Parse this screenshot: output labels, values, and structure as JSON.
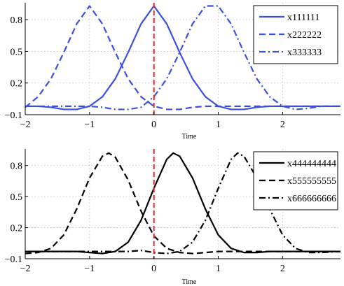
{
  "chart_data": [
    {
      "type": "line",
      "title": "",
      "xlabel": "Time",
      "ylabel": "",
      "xlim": [
        -2,
        2.9
      ],
      "ylim": [
        -0.1,
        0.96
      ],
      "xticks": [
        -2,
        -1,
        0,
        1,
        2
      ],
      "yticks": [
        -0.1,
        0.2,
        0.5,
        0.8
      ],
      "xtick_labels": [
        "−2",
        "−1",
        "0",
        "1",
        "2"
      ],
      "ytick_labels": [
        "−0.1",
        "0.2",
        "0.5",
        "0.8"
      ],
      "grid": true,
      "legend_position": "top-right",
      "vline": {
        "x": 0,
        "color": "#e8282b",
        "style": "dashed"
      },
      "series": [
        {
          "name": "x111111",
          "color": "#3b4fe0",
          "style": "solid",
          "x": [
            -2,
            -1.8,
            -1.6,
            -1.4,
            -1.2,
            -1.0,
            -0.8,
            -0.6,
            -0.4,
            -0.2,
            0,
            0.2,
            0.4,
            0.6,
            0.8,
            1.0,
            1.2,
            1.4,
            1.6,
            1.8,
            2.0,
            2.2,
            2.4,
            2.6,
            2.8,
            2.9
          ],
          "y": [
            -0.02,
            -0.02,
            -0.03,
            -0.05,
            -0.05,
            -0.02,
            0.07,
            0.24,
            0.49,
            0.76,
            0.93,
            0.76,
            0.49,
            0.24,
            0.07,
            -0.02,
            -0.05,
            -0.05,
            -0.03,
            -0.02,
            -0.02,
            -0.02,
            -0.02,
            -0.02,
            -0.02,
            -0.02
          ]
        },
        {
          "name": "x222222",
          "color": "#3b4fe0",
          "style": "dashed",
          "x": [
            -2,
            -1.8,
            -1.6,
            -1.4,
            -1.2,
            -1.0,
            -0.8,
            -0.6,
            -0.4,
            -0.2,
            0,
            0.2,
            0.4,
            0.6,
            0.8,
            1.0,
            1.2,
            1.4,
            1.6,
            1.8,
            2.0,
            2.2,
            2.4,
            2.6,
            2.8,
            2.9
          ],
          "y": [
            -0.03,
            0.07,
            0.24,
            0.49,
            0.76,
            0.93,
            0.76,
            0.49,
            0.24,
            0.07,
            -0.02,
            -0.05,
            -0.05,
            -0.03,
            -0.02,
            -0.02,
            -0.02,
            -0.02,
            -0.02,
            -0.02,
            -0.02,
            -0.02,
            -0.02,
            -0.02,
            -0.02,
            -0.02
          ]
        },
        {
          "name": "x333333",
          "color": "#3b4fe0",
          "style": "dashdot",
          "x": [
            -2,
            -1.8,
            -1.6,
            -1.4,
            -1.2,
            -1.0,
            -0.8,
            -0.6,
            -0.4,
            -0.2,
            0,
            0.2,
            0.4,
            0.6,
            0.8,
            1.0,
            1.2,
            1.4,
            1.6,
            1.8,
            2.0,
            2.2,
            2.4,
            2.6,
            2.8,
            2.9
          ],
          "y": [
            -0.02,
            -0.02,
            -0.02,
            -0.02,
            -0.02,
            -0.02,
            -0.03,
            -0.05,
            -0.05,
            -0.03,
            0.07,
            0.24,
            0.49,
            0.76,
            0.93,
            0.93,
            0.76,
            0.49,
            0.24,
            0.07,
            -0.02,
            -0.05,
            -0.04,
            -0.02,
            -0.02,
            -0.02
          ]
        }
      ]
    },
    {
      "type": "line",
      "title": "",
      "xlabel": "Time",
      "ylabel": "",
      "xlim": [
        -2,
        2.9
      ],
      "ylim": [
        -0.1,
        0.96
      ],
      "xticks": [
        -2,
        -1,
        0,
        1,
        2
      ],
      "yticks": [
        -0.1,
        0.2,
        0.5,
        0.8
      ],
      "xtick_labels": [
        "−2",
        "−1",
        "0",
        "1",
        "2"
      ],
      "ytick_labels": [
        "−0.1",
        "0.2",
        "0.5",
        "0.8"
      ],
      "grid": true,
      "legend_position": "top-right",
      "vline": {
        "x": 0,
        "color": "#e8282b",
        "style": "dashed"
      },
      "series": [
        {
          "name": "x444444444",
          "color": "#000000",
          "style": "solid",
          "x": [
            -2,
            -1.8,
            -1.6,
            -1.4,
            -1.2,
            -1.0,
            -0.8,
            -0.6,
            -0.4,
            -0.2,
            0,
            0.2,
            0.3,
            0.4,
            0.6,
            0.8,
            1.0,
            1.2,
            1.4,
            1.6,
            1.8,
            2.0,
            2.2,
            2.4,
            2.6,
            2.9
          ],
          "y": [
            -0.03,
            -0.03,
            -0.03,
            -0.03,
            -0.03,
            -0.04,
            -0.05,
            -0.03,
            0.06,
            0.27,
            0.58,
            0.86,
            0.92,
            0.89,
            0.68,
            0.38,
            0.13,
            0.0,
            -0.04,
            -0.04,
            -0.03,
            -0.03,
            -0.03,
            -0.03,
            -0.03,
            -0.03
          ]
        },
        {
          "name": "x555555555",
          "color": "#000000",
          "style": "dashed",
          "x": [
            -2,
            -1.8,
            -1.6,
            -1.4,
            -1.2,
            -1.0,
            -0.8,
            -0.7,
            -0.6,
            -0.4,
            -0.2,
            0,
            0.2,
            0.4,
            0.6,
            0.8,
            1.0,
            1.2,
            1.4,
            1.6,
            1.8,
            2.0,
            2.2,
            2.4,
            2.6,
            2.9
          ],
          "y": [
            -0.05,
            -0.04,
            0.0,
            0.13,
            0.38,
            0.68,
            0.89,
            0.92,
            0.88,
            0.66,
            0.36,
            0.12,
            0.0,
            -0.04,
            -0.05,
            -0.04,
            -0.03,
            -0.03,
            -0.03,
            -0.03,
            -0.03,
            -0.03,
            -0.03,
            -0.03,
            -0.03,
            -0.03
          ]
        },
        {
          "name": "x666666666",
          "color": "#000000",
          "style": "dashdot",
          "x": [
            -2,
            -1.8,
            -1.6,
            -1.4,
            -1.2,
            -1.0,
            -0.8,
            -0.6,
            -0.4,
            -0.2,
            0,
            0.2,
            0.4,
            0.6,
            0.8,
            1.0,
            1.2,
            1.3,
            1.4,
            1.6,
            1.8,
            2.0,
            2.2,
            2.4,
            2.6,
            2.9
          ],
          "y": [
            -0.03,
            -0.03,
            -0.03,
            -0.03,
            -0.03,
            -0.03,
            -0.03,
            -0.03,
            -0.03,
            -0.02,
            -0.04,
            -0.05,
            -0.03,
            0.06,
            0.27,
            0.58,
            0.86,
            0.92,
            0.89,
            0.68,
            0.38,
            0.13,
            0.0,
            -0.04,
            -0.04,
            -0.03
          ]
        }
      ]
    }
  ]
}
